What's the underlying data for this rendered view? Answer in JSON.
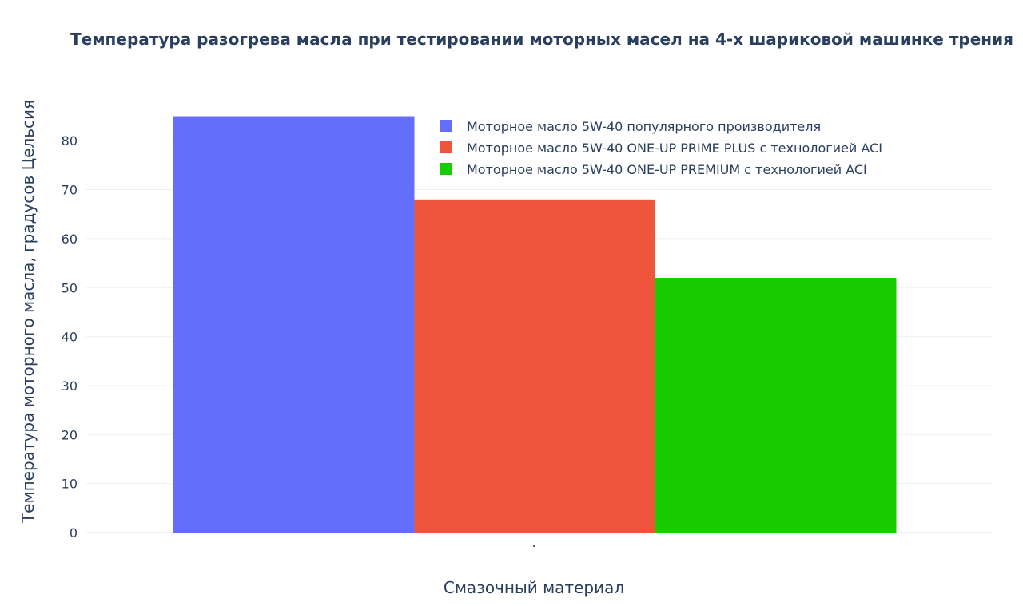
{
  "chart_data": {
    "type": "bar",
    "title": "Температура разогрева масла при тестировании моторных масел на 4-х шариковой машинке трения",
    "xlabel": "Смазочный материал",
    "ylabel": "Температура моторного масла, градусов Цельсия",
    "categories": [
      "."
    ],
    "ylim": [
      0,
      85
    ],
    "yticks": [
      0,
      10,
      20,
      30,
      40,
      50,
      60,
      70,
      80
    ],
    "grid": true,
    "legend_position": "top-right",
    "series": [
      {
        "name": "Моторное масло 5W-40 популярного производителя",
        "values": [
          85
        ],
        "color": "#636efa"
      },
      {
        "name": "Моторное масло 5W-40 ONE-UP PRIME PLUS с технологией ACI",
        "values": [
          68
        ],
        "color": "#ef553b"
      },
      {
        "name": "Моторное масло 5W-40 ONE-UP PREMIUM с технологией ACI",
        "values": [
          52
        ],
        "color": "#19cc00"
      }
    ]
  }
}
